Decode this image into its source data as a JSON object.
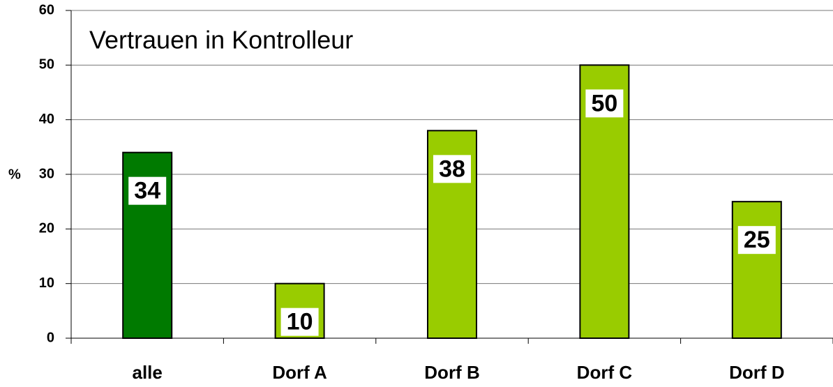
{
  "chart_data": {
    "type": "bar",
    "title": "Vertrauen in Kontrolleur",
    "y_label": "%",
    "categories": [
      "alle",
      "Dorf A",
      "Dorf B",
      "Dorf C",
      "Dorf D"
    ],
    "values": [
      34,
      10,
      38,
      50,
      25
    ],
    "colors": [
      "#007a00",
      "#99cc00",
      "#99cc00",
      "#99cc00",
      "#99cc00"
    ],
    "ylim": [
      0,
      60
    ],
    "yticks": [
      0,
      10,
      20,
      30,
      40,
      50,
      60
    ],
    "grid": true
  }
}
